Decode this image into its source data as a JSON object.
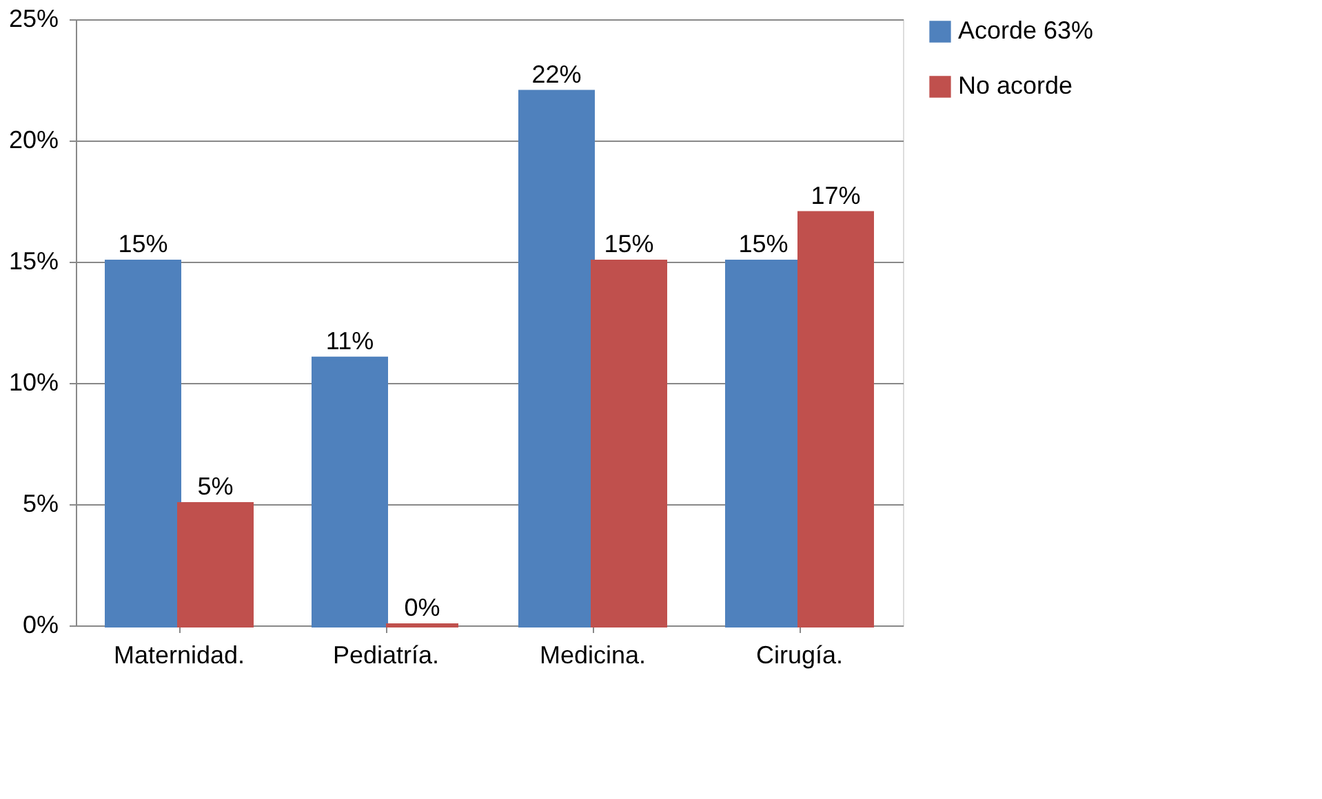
{
  "chart_data": {
    "type": "bar",
    "categories": [
      "Maternidad.",
      "Pediatría.",
      "Medicina.",
      "Cirugía."
    ],
    "series": [
      {
        "name": "Acorde 63%",
        "color": "#4f81bd",
        "values": [
          15,
          11,
          22,
          15
        ],
        "value_labels": [
          "15%",
          "11%",
          "22%",
          "15%"
        ]
      },
      {
        "name": "No acorde",
        "color": "#c0504d",
        "values": [
          5,
          0,
          15,
          17
        ],
        "value_labels": [
          "5%",
          "0%",
          "15%",
          "17%"
        ]
      }
    ],
    "ylim": [
      0,
      25
    ],
    "yticks": [
      {
        "value": 0,
        "label": "0%"
      },
      {
        "value": 5,
        "label": "5%"
      },
      {
        "value": 10,
        "label": "10%"
      },
      {
        "value": 15,
        "label": "15%"
      },
      {
        "value": 20,
        "label": "20%"
      },
      {
        "value": 25,
        "label": "25%"
      }
    ],
    "grid": "y",
    "legend": "right"
  }
}
